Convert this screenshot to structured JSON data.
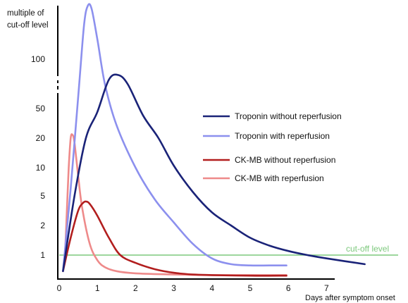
{
  "chart_data": {
    "type": "line",
    "ylabel_lines": [
      "multiple of",
      "cut-off level"
    ],
    "xlabel": "Days after symptom onset",
    "x_ticks": [
      "0",
      "1",
      "2",
      "3",
      "4",
      "5",
      "6",
      "7"
    ],
    "y_ticks": [
      "1",
      "2",
      "5",
      "10",
      "20",
      "50",
      "100"
    ],
    "y_scale": "log (broken axis above 50)",
    "grid": false,
    "legend_placement": "right",
    "reference_line": {
      "label": "cut-off level",
      "value": 1,
      "color": "#7dc97d"
    },
    "series": [
      {
        "name": "Troponin without reperfusion",
        "color": "#1a2378",
        "x": [
          0.1,
          0.4,
          0.7,
          1.0,
          1.3,
          1.55,
          1.8,
          2.2,
          2.6,
          3.0,
          3.5,
          4.0,
          4.5,
          5.0,
          5.5,
          6.0,
          6.5,
          7.0,
          8.0
        ],
        "y": [
          0.6,
          5,
          20,
          45,
          75,
          80,
          70,
          40,
          20,
          10.5,
          5.5,
          3,
          2,
          1.5,
          1.25,
          1.1,
          1.0,
          0.9,
          0.75
        ]
      },
      {
        "name": "Troponin with reperfusion",
        "color": "#8c90ee",
        "x": [
          0.1,
          0.3,
          0.5,
          0.65,
          0.75,
          0.85,
          1.0,
          1.2,
          1.5,
          2.0,
          2.5,
          3.0,
          3.5,
          4.0,
          4.5,
          5.0,
          5.5,
          5.95
        ],
        "y": [
          0.6,
          6,
          60,
          200,
          300,
          280,
          150,
          70,
          30,
          10,
          4.5,
          2.2,
          1.3,
          0.9,
          0.75,
          0.72,
          0.72,
          0.72
        ]
      },
      {
        "name": "CK-MB without reperfusion",
        "color": "#b21e1e",
        "x": [
          0.1,
          0.3,
          0.5,
          0.62,
          0.7,
          0.8,
          1.0,
          1.3,
          1.6,
          2.0,
          2.5,
          3.0,
          3.5,
          4.0,
          5.0,
          5.95
        ],
        "y": [
          0.6,
          1.5,
          3.2,
          4,
          4.2,
          3.9,
          2.7,
          1.5,
          1.0,
          0.78,
          0.64,
          0.57,
          0.54,
          0.53,
          0.52,
          0.52
        ]
      },
      {
        "name": "CK-MB with reperfusion",
        "color": "#ee8a8a",
        "x": [
          0.1,
          0.15,
          0.2,
          0.25,
          0.3,
          0.35,
          0.4,
          0.5,
          0.6,
          0.8,
          1.0,
          1.2,
          1.5,
          2.0,
          3.0,
          4.0,
          5.0,
          5.95
        ],
        "y": [
          0.6,
          1.0,
          3.0,
          10,
          20,
          22,
          18,
          8,
          3.5,
          1.3,
          0.85,
          0.68,
          0.6,
          0.56,
          0.54,
          0.53,
          0.53,
          0.53
        ]
      }
    ]
  }
}
